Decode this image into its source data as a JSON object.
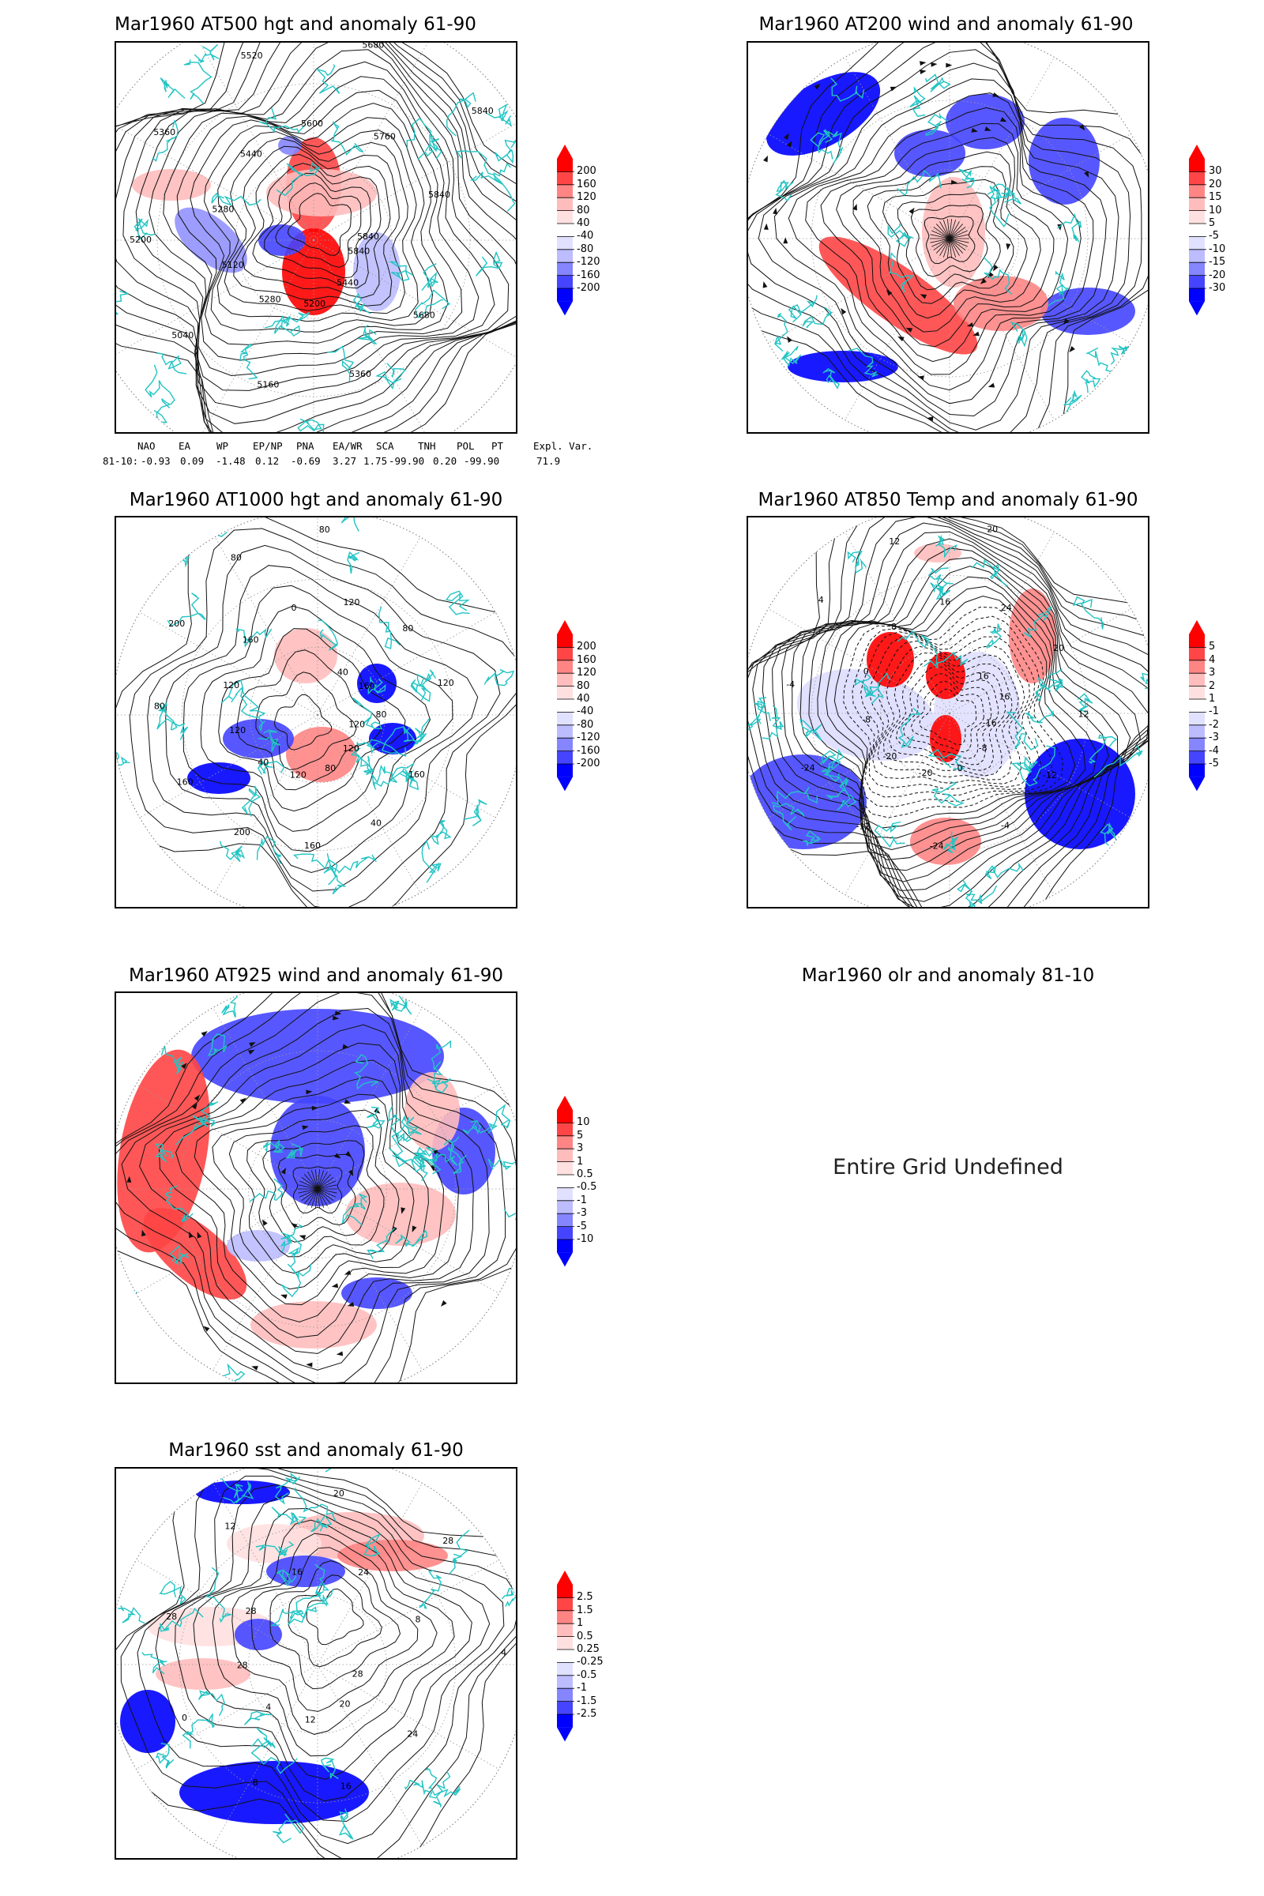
{
  "panels": [
    {
      "id": "p1",
      "title": "Mar1960 AT500 hgt and anomaly 61-90",
      "colorbar": {
        "levels": [
          "200",
          "160",
          "120",
          "80",
          "40",
          "-40",
          "-80",
          "-120",
          "-160",
          "-200"
        ]
      },
      "contour_labels": [
        "5840",
        "5680",
        "5440",
        "5360",
        "5200",
        "5160",
        "5280",
        "5040",
        "5120",
        "5200",
        "5280",
        "5360",
        "5440",
        "5520",
        "5600",
        "5680",
        "5760",
        "5840",
        "5840",
        "5840"
      ]
    },
    {
      "id": "p2",
      "title": "Mar1960 AT200 wind and anomaly 61-90",
      "colorbar": {
        "levels": [
          "30",
          "20",
          "15",
          "10",
          "5",
          "-5",
          "-10",
          "-15",
          "-20",
          "-30"
        ]
      }
    },
    {
      "id": "p3",
      "title": "Mar1960 AT1000 hgt and anomaly 61-90",
      "colorbar": {
        "levels": [
          "200",
          "160",
          "120",
          "80",
          "40",
          "-40",
          "-80",
          "-120",
          "-160",
          "-200"
        ]
      },
      "contour_labels": [
        "120",
        "160",
        "120",
        "40",
        "80",
        "160",
        "120",
        "200",
        "40",
        "160",
        "120",
        "80",
        "120",
        "200",
        "160",
        "80",
        "0",
        "80",
        "120",
        "40",
        "80",
        "160",
        "120",
        "80"
      ]
    },
    {
      "id": "p4",
      "title": "Mar1960 AT850 Temp and anomaly 61-90",
      "colorbar": {
        "levels": [
          "5",
          "4",
          "3",
          "2",
          "1",
          "-1",
          "-2",
          "-3",
          "-4",
          "-5"
        ]
      },
      "contour_labels": [
        "-16",
        "-12",
        "-8",
        "-4",
        "0",
        "-24",
        "-20",
        "-12",
        "-20",
        "-24",
        "-8",
        "-4",
        "0",
        "4",
        "8",
        "12",
        "16",
        "20",
        "24",
        "16",
        "20",
        "16",
        "12"
      ]
    },
    {
      "id": "p5",
      "title": "Mar1960 AT925 wind and anomaly 61-90",
      "colorbar": {
        "levels": [
          "10",
          "5",
          "3",
          "1",
          "0.5",
          "-0.5",
          "-1",
          "-3",
          "-5",
          "-10"
        ]
      }
    },
    {
      "id": "p6",
      "title": "Mar1960 olr and anomaly 81-10",
      "message": "Entire Grid Undefined"
    },
    {
      "id": "p7",
      "title": "Mar1960 sst and anomaly 61-90",
      "colorbar": {
        "levels": [
          "2.5",
          "1.5",
          "1",
          "0.5",
          "0.25",
          "-0.25",
          "-0.5",
          "-1",
          "-1.5",
          "-2.5"
        ]
      },
      "contour_labels": [
        "28",
        "24",
        "20",
        "16",
        "12",
        "8",
        "4",
        "0",
        "28",
        "28",
        "28",
        "12",
        "16",
        "20",
        "24",
        "28",
        "8",
        "4"
      ]
    }
  ],
  "indices": {
    "headers": [
      "NAO",
      "EA",
      "WP",
      "EP/NP",
      "PNA",
      "EA/WR",
      "SCA",
      "TNH",
      "POL",
      "PT",
      "Expl. Var."
    ],
    "row_label": "81-10:",
    "values": [
      "-0.93",
      "0.09",
      "-1.48",
      "0.12",
      "-0.69",
      "3.27",
      "1.75",
      "-99.90",
      "0.20",
      "-99.90",
      "71.9"
    ]
  },
  "colors": {
    "map_outline": "#22c4c4",
    "contour": "#111111",
    "positive_scale": [
      "#ff0000",
      "#ff4545",
      "#ff8585",
      "#ffbcbc",
      "#ffe0e0"
    ],
    "negative_scale": [
      "#e0e0ff",
      "#bcbcff",
      "#8585ff",
      "#4545ff",
      "#0000ff"
    ]
  }
}
